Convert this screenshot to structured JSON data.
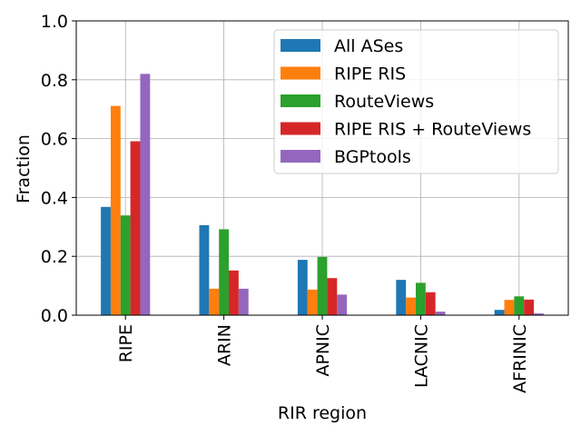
{
  "chart_data": {
    "type": "bar",
    "xlabel": "RIR region",
    "ylabel": "Fraction",
    "ylim": [
      0,
      1.0
    ],
    "yticks": [
      "0.0",
      "0.2",
      "0.4",
      "0.6",
      "0.8",
      "1.0"
    ],
    "categories": [
      "RIPE",
      "ARIN",
      "APNIC",
      "LACNIC",
      "AFRINIC"
    ],
    "series": [
      {
        "name": "All ASes",
        "color": "#1f77b4",
        "values": [
          0.368,
          0.306,
          0.188,
          0.12,
          0.018
        ]
      },
      {
        "name": "RIPE RIS",
        "color": "#ff7f0e",
        "values": [
          0.711,
          0.09,
          0.087,
          0.06,
          0.052
        ]
      },
      {
        "name": "RouteViews",
        "color": "#2ca02c",
        "values": [
          0.339,
          0.292,
          0.198,
          0.11,
          0.064
        ]
      },
      {
        "name": "RIPE RIS + RouteViews",
        "color": "#d62728",
        "values": [
          0.591,
          0.152,
          0.126,
          0.078,
          0.053
        ]
      },
      {
        "name": "BGPtools",
        "color": "#9467bd",
        "values": [
          0.82,
          0.09,
          0.07,
          0.012,
          0.006
        ]
      }
    ],
    "grid": true,
    "legend_position": "upper right"
  }
}
